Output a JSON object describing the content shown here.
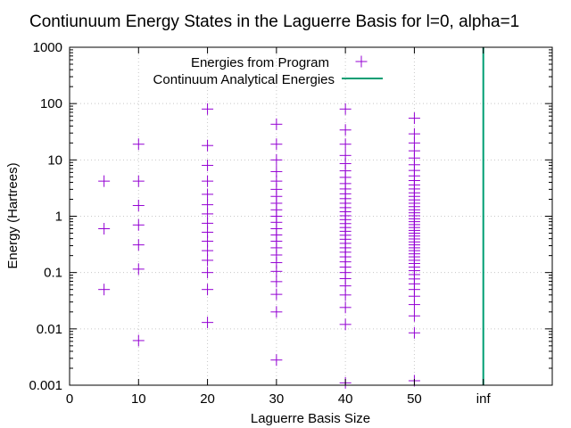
{
  "chart_data": {
    "type": "scatter",
    "title": "Contiunuum Energy States in the Laguerre Basis for l=0, alpha=1",
    "xlabel": "Laguerre Basis Size",
    "ylabel": "Energy (Hartrees)",
    "xlim": [
      0,
      70
    ],
    "ylim": [
      0.001,
      1000
    ],
    "y_scale": "log",
    "grid": true,
    "legend_position": "top-center",
    "x_ticks": [
      {
        "value": 0,
        "label": "0"
      },
      {
        "value": 10,
        "label": "10"
      },
      {
        "value": 20,
        "label": "20"
      },
      {
        "value": 30,
        "label": "30"
      },
      {
        "value": 40,
        "label": "40"
      },
      {
        "value": 50,
        "label": "50"
      },
      {
        "value": 60,
        "label": "inf"
      }
    ],
    "y_ticks": [
      {
        "value": 0.001,
        "label": "0.001"
      },
      {
        "value": 0.01,
        "label": "0.01"
      },
      {
        "value": 0.1,
        "label": "0.1"
      },
      {
        "value": 1,
        "label": "1"
      },
      {
        "value": 10,
        "label": "10"
      },
      {
        "value": 100,
        "label": "100"
      },
      {
        "value": 1000,
        "label": "1000"
      }
    ],
    "series": [
      {
        "name": "Energies from Program",
        "color": "#9400d3",
        "marker": "plus",
        "groups": [
          {
            "x": 5,
            "y": [
              0.05,
              0.6,
              4.2
            ]
          },
          {
            "x": 10,
            "y": [
              0.0062,
              0.115,
              0.31,
              0.7,
              1.55,
              4.2,
              19
            ]
          },
          {
            "x": 20,
            "y": [
              0.013,
              0.05,
              0.1,
              0.165,
              0.245,
              0.36,
              0.52,
              0.75,
              1.1,
              1.6,
              2.45,
              4.2,
              8,
              18,
              80
            ]
          },
          {
            "x": 30,
            "y": [
              0.0028,
              0.02,
              0.041,
              0.069,
              0.105,
              0.15,
              0.205,
              0.275,
              0.36,
              0.465,
              0.6,
              0.78,
              1.0,
              1.3,
              1.7,
              2.25,
              3.0,
              4.2,
              6.2,
              10,
              19,
              43
            ]
          },
          {
            "x": 40,
            "y": [
              0.0011,
              0.012,
              0.024,
              0.04,
              0.058,
              0.078,
              0.1,
              0.125,
              0.155,
              0.19,
              0.23,
              0.275,
              0.33,
              0.39,
              0.46,
              0.54,
              0.63,
              0.74,
              0.87,
              1.02,
              1.2,
              1.42,
              1.7,
              2.05,
              2.5,
              3.05,
              3.8,
              4.9,
              6.4,
              8.6,
              12,
              19,
              34,
              80
            ]
          },
          {
            "x": 50,
            "y": [
              0.0012,
              0.0085,
              0.017,
              0.027,
              0.038,
              0.05,
              0.063,
              0.077,
              0.092,
              0.108,
              0.125,
              0.145,
              0.165,
              0.19,
              0.215,
              0.245,
              0.275,
              0.31,
              0.35,
              0.395,
              0.445,
              0.5,
              0.56,
              0.63,
              0.71,
              0.8,
              0.9,
              1.02,
              1.15,
              1.3,
              1.48,
              1.7,
              1.95,
              2.25,
              2.6,
              3.05,
              3.6,
              4.3,
              5.2,
              6.5,
              8.2,
              10.8,
              14.5,
              20,
              29,
              55
            ]
          }
        ]
      },
      {
        "name": "Continuum Analytical Energies",
        "color": "#009e73",
        "marker": "line",
        "x": 60
      }
    ]
  }
}
